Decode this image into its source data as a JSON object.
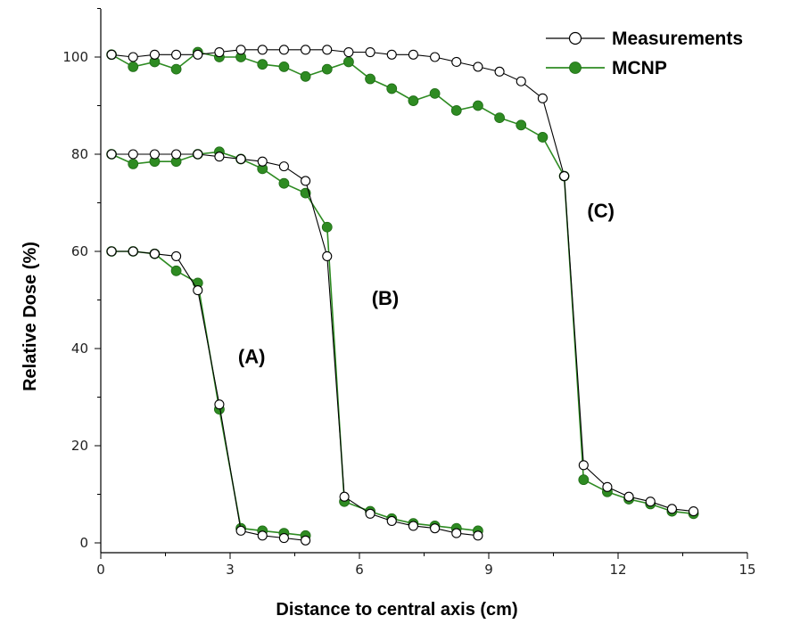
{
  "chart_data": {
    "type": "line",
    "title": "",
    "xlabel": "Distance to central axis (cm)",
    "ylabel": "Relative Dose (%)",
    "xlim": [
      0,
      15
    ],
    "ylim": [
      0,
      110
    ],
    "x_ticks": [
      0,
      3,
      6,
      9,
      12,
      15
    ],
    "y_ticks": [
      0,
      20,
      40,
      60,
      80,
      100
    ],
    "grid": false,
    "legend_position": "top-right",
    "legend": [
      {
        "name": "Measurements",
        "marker": "open-circle",
        "color": "#000000"
      },
      {
        "name": "MCNP",
        "marker": "filled-circle",
        "color": "#2e8b22"
      }
    ],
    "annotations": [
      {
        "text": "(A)",
        "x": 3.5,
        "y": 37
      },
      {
        "text": "(B)",
        "x": 6.6,
        "y": 49
      },
      {
        "text": "(C)",
        "x": 11.6,
        "y": 67
      }
    ],
    "curves": [
      {
        "label": "(A)",
        "series": [
          {
            "name": "Measurements",
            "x": [
              0.25,
              0.75,
              1.25,
              1.75,
              2.25,
              2.75,
              3.25,
              3.75,
              4.25,
              4.75
            ],
            "y": [
              60,
              60,
              59.5,
              59,
              52,
              28.5,
              2.5,
              1.5,
              1,
              0.5
            ]
          },
          {
            "name": "MCNP",
            "x": [
              0.25,
              0.75,
              1.25,
              1.75,
              2.25,
              2.75,
              3.25,
              3.75,
              4.25,
              4.75
            ],
            "y": [
              60,
              60,
              59.5,
              56,
              53.5,
              27.5,
              3,
              2.5,
              2,
              1.5
            ]
          }
        ]
      },
      {
        "label": "(B)",
        "series": [
          {
            "name": "Measurements",
            "x": [
              0.25,
              0.75,
              1.25,
              1.75,
              2.25,
              2.75,
              3.25,
              3.75,
              4.25,
              4.75,
              5.25,
              5.65,
              6.25,
              6.75,
              7.25,
              7.75,
              8.25,
              8.75
            ],
            "y": [
              80,
              80,
              80,
              80,
              80,
              79.5,
              79,
              78.5,
              77.5,
              74.5,
              59,
              9.5,
              6,
              4.5,
              3.5,
              3,
              2,
              1.5
            ]
          },
          {
            "name": "MCNP",
            "x": [
              0.25,
              0.75,
              1.25,
              1.75,
              2.25,
              2.75,
              3.25,
              3.75,
              4.25,
              4.75,
              5.25,
              5.65,
              6.25,
              6.75,
              7.25,
              7.75,
              8.25,
              8.75
            ],
            "y": [
              80,
              78,
              78.5,
              78.5,
              80,
              80.5,
              79,
              77,
              74,
              72,
              65,
              8.5,
              6.5,
              5,
              4,
              3.5,
              3,
              2.5
            ]
          }
        ]
      },
      {
        "label": "(C)",
        "series": [
          {
            "name": "Measurements",
            "x": [
              0.25,
              0.75,
              1.25,
              1.75,
              2.25,
              2.75,
              3.25,
              3.75,
              4.25,
              4.75,
              5.25,
              5.75,
              6.25,
              6.75,
              7.25,
              7.75,
              8.25,
              8.75,
              9.25,
              9.75,
              10.25,
              10.75,
              11.2,
              11.75,
              12.25,
              12.75,
              13.25,
              13.75
            ],
            "y": [
              100.5,
              100,
              100.5,
              100.5,
              100.5,
              101,
              101.5,
              101.5,
              101.5,
              101.5,
              101.5,
              101,
              101,
              100.5,
              100.5,
              100,
              99,
              98,
              97,
              95,
              91.5,
              75.5,
              16,
              11.5,
              9.5,
              8.5,
              7,
              6.5
            ]
          },
          {
            "name": "MCNP",
            "x": [
              0.25,
              0.75,
              1.25,
              1.75,
              2.25,
              2.75,
              3.25,
              3.75,
              4.25,
              4.75,
              5.25,
              5.75,
              6.25,
              6.75,
              7.25,
              7.75,
              8.25,
              8.75,
              9.25,
              9.75,
              10.25,
              10.75,
              11.2,
              11.75,
              12.25,
              12.75,
              13.25,
              13.75
            ],
            "y": [
              100.5,
              98,
              99,
              97.5,
              101,
              100,
              100,
              98.5,
              98,
              96,
              97.5,
              99,
              95.5,
              93.5,
              91,
              92.5,
              89,
              90,
              87.5,
              86,
              83.5,
              75.5,
              13,
              10.5,
              9,
              8,
              6.5,
              6
            ]
          }
        ]
      }
    ]
  }
}
